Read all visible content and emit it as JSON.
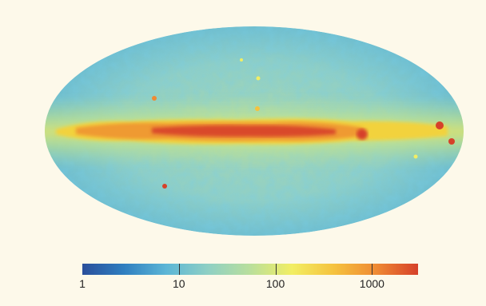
{
  "figure": {
    "projection": "mollweide",
    "colormap": [
      "#2a4f9b",
      "#2f7fc0",
      "#5cb6d6",
      "#8fd0c4",
      "#b9df9c",
      "#f2ee63",
      "#f5c23e",
      "#ef8a33",
      "#d6412a"
    ],
    "colorbar": {
      "scale": "log",
      "range": [
        1,
        3000
      ],
      "ticks": [
        {
          "value": 1,
          "label": "1"
        },
        {
          "value": 10,
          "label": "10"
        },
        {
          "value": 100,
          "label": "100"
        },
        {
          "value": 1000,
          "label": "1000"
        }
      ]
    }
  }
}
